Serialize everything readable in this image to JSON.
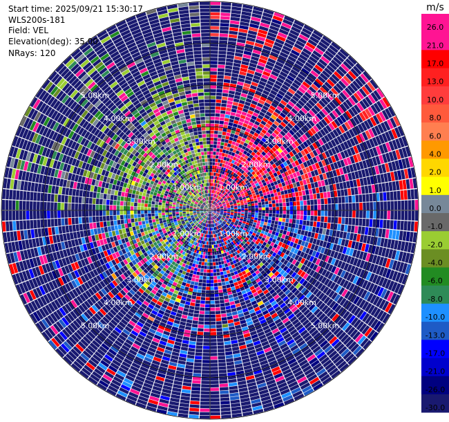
{
  "info": {
    "start_time": "Start time: 2025/09/21 15:30:17",
    "instrument": "WLS200s-181",
    "field": "Field: VEL",
    "elevation": "Elevation(deg): 35.00",
    "nrays": "NRays: 120"
  },
  "chart_data": {
    "type": "ppi",
    "field": "VEL",
    "n_rays": 120,
    "max_range_km": 5.0,
    "range_ring_labels": [
      "1.00km",
      "2.00km",
      "3.00km",
      "4.00km",
      "5.00km"
    ],
    "colorbar": {
      "unit": "m/s",
      "tick_labels": [
        "26.0",
        "21.0",
        "17.0",
        "13.0",
        "10.0",
        "8.0",
        "6.0",
        "4.0",
        "2.0",
        "1.0",
        "0.0",
        "-1.0",
        "-2.0",
        "-4.0",
        "-6.0",
        "-8.0",
        "-10.0",
        "-13.0",
        "-17.0",
        "-21.0",
        "-26.0",
        "-30.0"
      ],
      "colors": [
        "#ff1493",
        "#ff1493",
        "#ff0000",
        "#ff2020",
        "#ff3c3c",
        "#ff5a3c",
        "#ff7f50",
        "#ff9900",
        "#ffd700",
        "#ffff00",
        "#778899",
        "#696969",
        "#9acd32",
        "#6b8e23",
        "#228b22",
        "#2e8b57",
        "#1e90ff",
        "#1e5bc6",
        "#0000ff",
        "#0000cd",
        "#000080",
        "#191970"
      ]
    }
  }
}
